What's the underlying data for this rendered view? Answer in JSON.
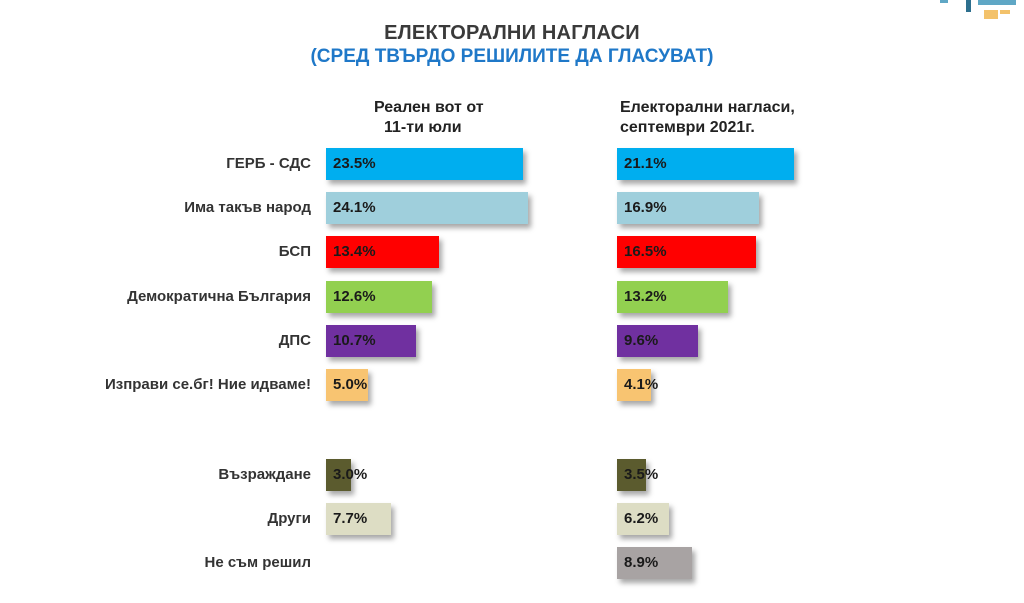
{
  "header": {
    "title": "ЕЛЕКТОРАЛНИ НАГЛАСИ",
    "subtitle": "(СРЕД ТВЪРДО РЕШИЛИТЕ ДА ГЛАСУВАТ)",
    "col1_line1": "Реален вот от",
    "col1_line2": "11-ти юли",
    "col2_line1": "Електорални нагласи,",
    "col2_line2": "септември 2021г."
  },
  "colors": {
    "gerb": "#00aeef",
    "itn": "#9fcfdc",
    "bsp": "#ff0000",
    "db": "#92d050",
    "dps": "#7030a0",
    "izpravi": "#f8c471",
    "vazrazhdane": "#5b5b2e",
    "drugi": "#ddddc4",
    "nereshil": "#a8a3a3",
    "title": "#3a3a3a",
    "subtitle": "#1f78c8"
  },
  "chart_data": {
    "type": "bar",
    "orientation": "horizontal",
    "categories": [
      "ГЕРБ - СДС",
      "Има такъв народ",
      "БСП",
      "Демократична България",
      "ДПС",
      "Изправи се.бг! Ние идваме!",
      "Възраждане",
      "Други",
      "Не съм решил"
    ],
    "series": [
      {
        "name": "Реален вот от 11-ти юли",
        "values": [
          23.5,
          24.1,
          13.4,
          12.6,
          10.7,
          5.0,
          3.0,
          7.7,
          null
        ],
        "labels": [
          "23.5%",
          "24.1%",
          "13.4%",
          "12.6%",
          "10.7%",
          "5.0%",
          "3.0%",
          "7.7%",
          ""
        ]
      },
      {
        "name": "Електорални нагласи, септември 2021г.",
        "values": [
          21.1,
          16.9,
          16.5,
          13.2,
          9.6,
          4.1,
          3.5,
          6.2,
          8.9
        ],
        "labels": [
          "21.1%",
          "16.9%",
          "16.5%",
          "13.2%",
          "9.6%",
          "4.1%",
          "3.5%",
          "6.2%",
          "8.9%"
        ]
      }
    ],
    "bar_colors": [
      "#00aeef",
      "#9fcfdc",
      "#ff0000",
      "#92d050",
      "#7030a0",
      "#f8c471",
      "#5b5b2e",
      "#ddddc4",
      "#a8a3a3"
    ],
    "title": "ЕЛЕКТОРАЛНИ НАГЛАСИ",
    "subtitle": "(СРЕД ТВЪРДО РЕШИЛИТЕ ДА ГЛАСУВАТ)",
    "unit": "%",
    "grid": false,
    "legend": "none"
  }
}
